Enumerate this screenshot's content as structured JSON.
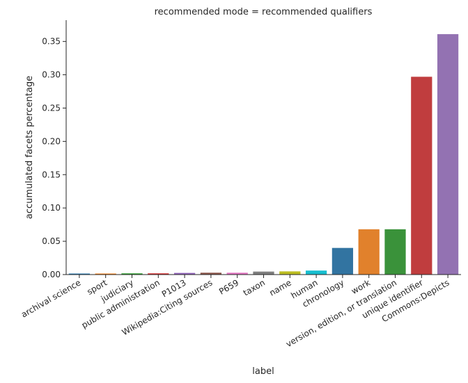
{
  "chart_data": {
    "type": "bar",
    "title": "recommended mode = recommended qualifiers",
    "xlabel": "label",
    "ylabel": "accumulated facets percentage",
    "ylim": [
      0,
      0.382
    ],
    "yticks": [
      "0.00",
      "0.05",
      "0.10",
      "0.15",
      "0.20",
      "0.25",
      "0.30",
      "0.35"
    ],
    "grid": false,
    "categories": [
      "archival science",
      "sport",
      "judiciary",
      "public administration",
      "P1013",
      "Wikipedia:Citing sources",
      "P659",
      "taxon",
      "name",
      "human",
      "chronology",
      "work",
      "version, edition, or translation",
      "unique identifier",
      "Commons:Depicts"
    ],
    "values": [
      0.0015,
      0.0015,
      0.0018,
      0.0018,
      0.0025,
      0.0028,
      0.0028,
      0.0045,
      0.0048,
      0.006,
      0.04,
      0.068,
      0.068,
      0.297,
      0.361
    ],
    "colors": [
      "#1f77b4",
      "#ff7f0e",
      "#2ca02c",
      "#d62728",
      "#9467bd",
      "#8c564b",
      "#e377c2",
      "#7f7f7f",
      "#bcbd22",
      "#17becf",
      "#3274a1",
      "#e1812c",
      "#3a923a",
      "#c03d3e",
      "#9372b2"
    ]
  }
}
